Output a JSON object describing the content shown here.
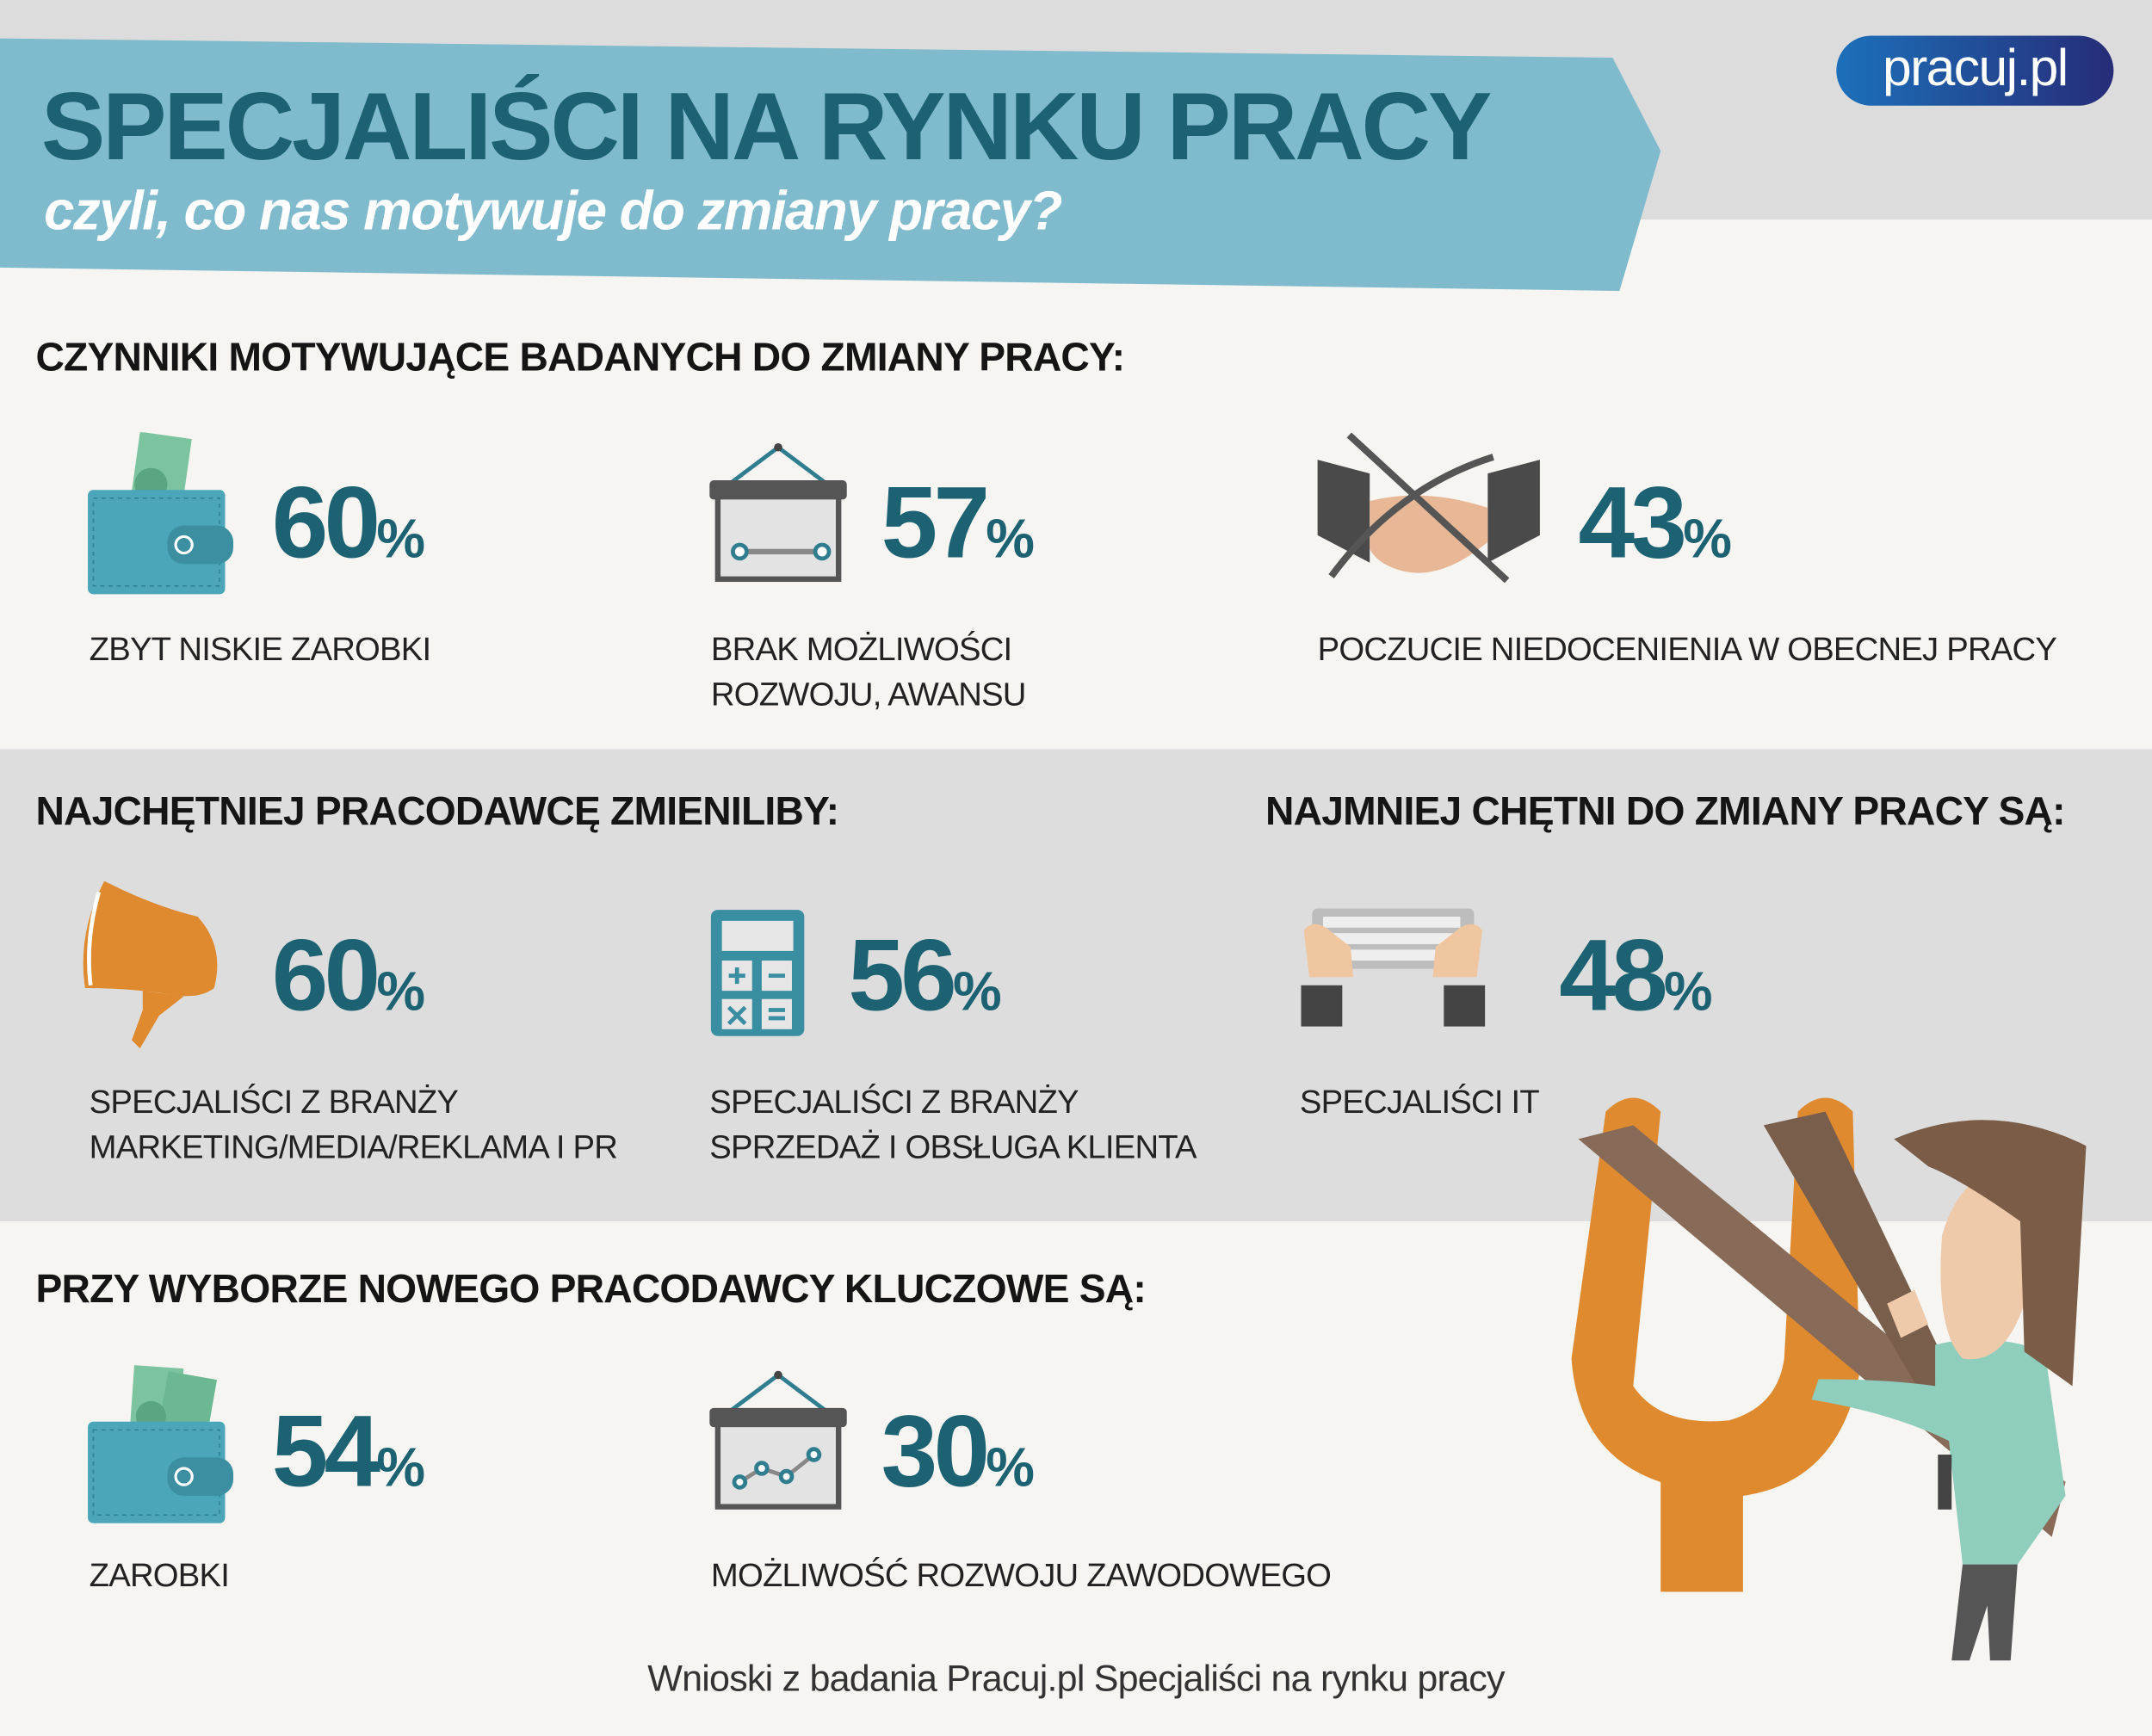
{
  "header": {
    "title": "SPECJALIŚCI NA RYNKU PRACY",
    "subtitle": "czyli, co nas motywuje do zmiany pracy?",
    "logo_text": "pracuj.pl"
  },
  "colors": {
    "accent": "#1c6272",
    "banner": "#7fbacd",
    "orange": "#e08a30",
    "wallet": "#4aa6b8"
  },
  "sections": {
    "motivators": {
      "heading": "CZYNNIKI MOTYWUJĄCE BADANYCH DO ZMIANY PRACY:",
      "items": [
        {
          "icon": "wallet-icon",
          "value": "60",
          "label_lines": [
            "ZBYT NISKIE ZAROBKI"
          ]
        },
        {
          "icon": "board-icon",
          "value": "57",
          "label_lines": [
            "BRAK MOŻLIWOŚCI",
            "ROZWOJU, AWANSU"
          ]
        },
        {
          "icon": "crossed-handshake-icon",
          "value": "43",
          "label_lines": [
            "POCZUCIE NIEDOCENIENIA W OBECNEJ PRACY"
          ]
        }
      ]
    },
    "most_willing": {
      "heading": "NAJCHĘTNIEJ PRACODAWCĘ ZMIENILIBY:",
      "items": [
        {
          "icon": "megaphone-icon",
          "value": "60",
          "label_lines": [
            "SPECJALIŚCI Z BRANŻY",
            "MARKETING/MEDIA/REKLAMA I PR"
          ]
        },
        {
          "icon": "calculator-icon",
          "value": "56",
          "label_lines": [
            "SPECJALIŚCI Z BRANŻY",
            "SPRZEDAŻ I OBSŁUGA KLIENTA"
          ]
        }
      ]
    },
    "least_willing": {
      "heading": "NAJMNIEJ CHĘTNI DO ZMIANY PRACY SĄ:",
      "items": [
        {
          "icon": "keyboard-hands-icon",
          "value": "48",
          "label_lines": [
            "SPECJALIŚCI IT"
          ]
        }
      ]
    },
    "key_factors": {
      "heading": "PRZY WYBORZE NOWEGO PRACODAWCY KLUCZOWE SĄ:",
      "items": [
        {
          "icon": "wallet-icon",
          "value": "54",
          "label_lines": [
            "ZAROBKI"
          ]
        },
        {
          "icon": "chart-board-icon",
          "value": "30",
          "label_lines": [
            "MOŻLIWOŚĆ ROZWOJU ZAWODOWEGO"
          ]
        }
      ]
    }
  },
  "percent_sign": "%",
  "footer": "Wnioski z badania Pracuj.pl Specjaliści na rynku pracy"
}
